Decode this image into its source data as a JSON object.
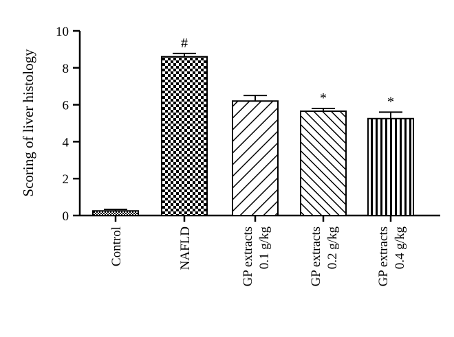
{
  "chart_data": {
    "type": "bar",
    "title": "",
    "xlabel": "",
    "ylabel": "Scoring of liver histology",
    "ylim": [
      0,
      10
    ],
    "yticks": [
      "0",
      "2",
      "4",
      "6",
      "8",
      "10"
    ],
    "categories": [
      [
        "Control"
      ],
      [
        "NAFLD"
      ],
      [
        "GP extracts",
        "0.1 g/kg"
      ],
      [
        "GP extracts",
        "0.2 g/kg"
      ],
      [
        "GP extracts",
        "0.4 g/kg"
      ]
    ],
    "values": [
      0.25,
      8.6,
      6.2,
      5.65,
      5.25
    ],
    "errors": [
      0.08,
      0.18,
      0.3,
      0.15,
      0.35
    ],
    "annotations": [
      "",
      "#",
      "",
      "*",
      "*"
    ],
    "patterns": [
      "fine-check",
      "check",
      "diag-back",
      "diag-fwd",
      "vertical"
    ],
    "grid": false,
    "legend": "none"
  }
}
